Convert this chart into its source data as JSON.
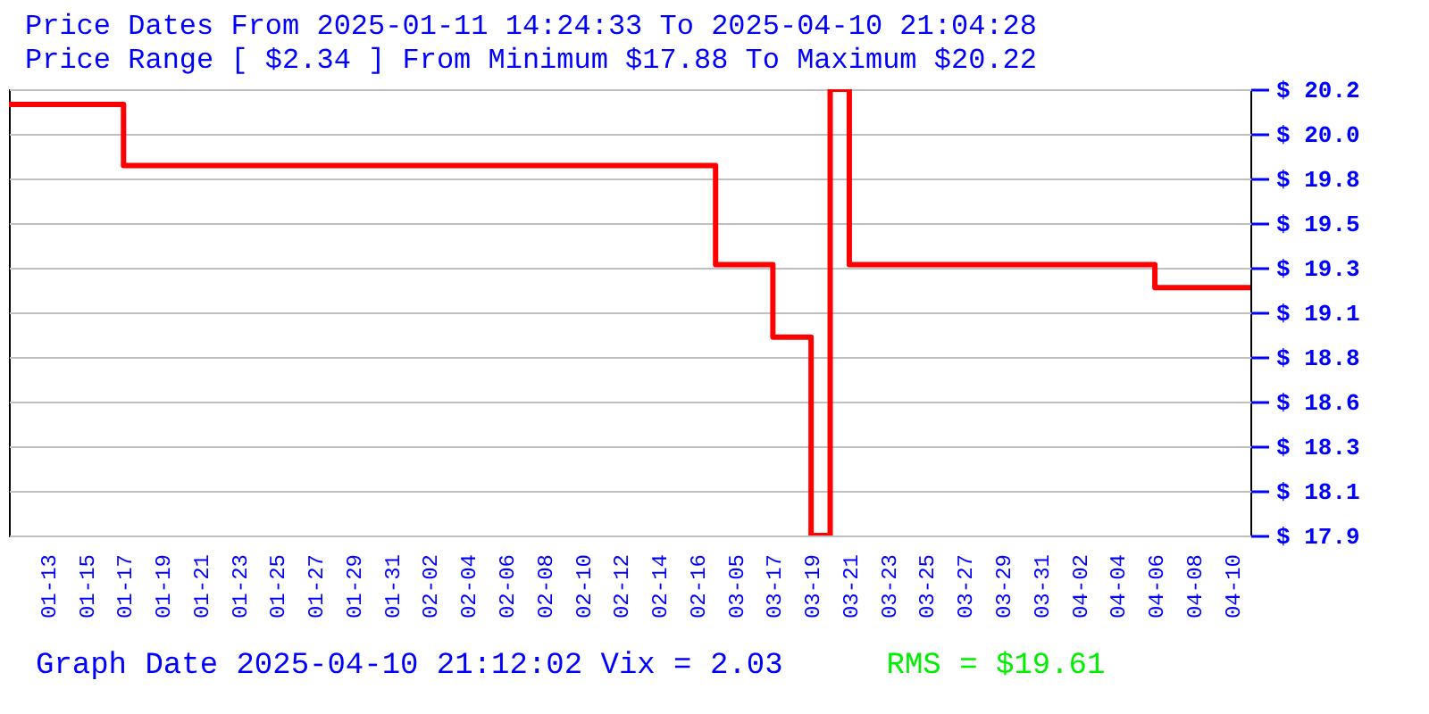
{
  "chart_data": {
    "type": "step",
    "title": "Price Dates From 2025-01-11 14:24:33 To 2025-04-10 21:04:28",
    "subtitle": "Price Range [ $2.34 ] From Minimum $17.88 To Maximum $20.22",
    "annotations": [
      "Graph Date 2025-04-10 21:12:02 Vix = 2.03",
      "RMS = $19.61"
    ],
    "categories": [
      null,
      null,
      "01-13",
      null,
      "01-15",
      null,
      "01-17",
      null,
      "01-19",
      null,
      "01-21",
      null,
      "01-23",
      null,
      "01-25",
      null,
      "01-27",
      null,
      "01-29",
      null,
      "01-31",
      null,
      "02-02",
      null,
      "02-04",
      null,
      "02-06",
      null,
      "02-08",
      null,
      "02-10",
      null,
      "02-12",
      null,
      "02-14",
      null,
      "02-16",
      null,
      "03-05",
      null,
      "03-17",
      null,
      "03-19",
      null,
      "03-21",
      null,
      "03-23",
      null,
      "03-25",
      null,
      "03-27",
      null,
      "03-29",
      null,
      "03-31",
      null,
      "04-02",
      null,
      "04-04",
      null,
      "04-06",
      null,
      "04-08",
      null,
      "04-10",
      null
    ],
    "series": [
      {
        "color": "#ff0000",
        "values": [
          20.14,
          20.14,
          20.14,
          20.14,
          20.14,
          20.14,
          19.82,
          19.82,
          19.82,
          19.82,
          19.82,
          19.82,
          19.82,
          19.82,
          19.82,
          19.82,
          19.82,
          19.82,
          19.82,
          19.82,
          19.82,
          19.82,
          19.82,
          19.82,
          19.82,
          19.82,
          19.82,
          19.82,
          19.82,
          19.82,
          19.82,
          19.82,
          19.82,
          19.82,
          19.82,
          19.82,
          19.82,
          19.3,
          19.3,
          19.3,
          18.92,
          18.92,
          17.88,
          20.22,
          19.3,
          19.3,
          19.3,
          19.3,
          19.3,
          19.3,
          19.3,
          19.3,
          19.3,
          19.3,
          19.3,
          19.3,
          19.3,
          19.3,
          19.3,
          19.3,
          19.18,
          19.18,
          19.18,
          19.18,
          19.18,
          19.18
        ]
      }
    ],
    "ylim": [
      17.88,
      20.22
    ],
    "yticks": [
      {
        "value": 17.88,
        "label": "$ 17.9"
      },
      {
        "value": 18.114,
        "label": "$ 18.1"
      },
      {
        "value": 18.348,
        "label": "$ 18.3"
      },
      {
        "value": 18.582,
        "label": "$ 18.6"
      },
      {
        "value": 18.816,
        "label": "$ 18.8"
      },
      {
        "value": 19.05,
        "label": "$ 19.1"
      },
      {
        "value": 19.284,
        "label": "$ 19.3"
      },
      {
        "value": 19.518,
        "label": "$ 19.5"
      },
      {
        "value": 19.752,
        "label": "$ 19.8"
      },
      {
        "value": 19.986,
        "label": "$ 20.0"
      },
      {
        "value": 20.22,
        "label": "$ 20.2"
      }
    ],
    "grid": "y"
  }
}
